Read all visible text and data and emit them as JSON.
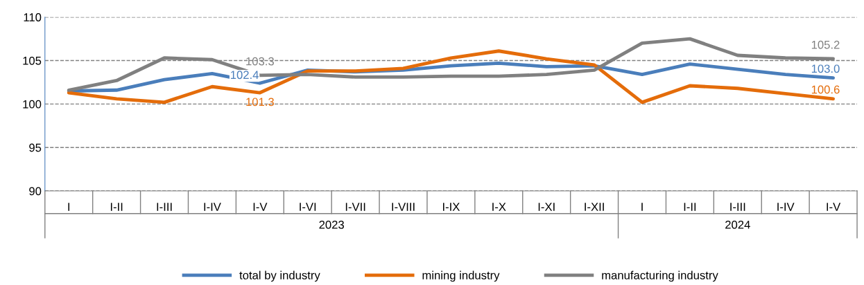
{
  "chart_data": {
    "type": "line",
    "categories": [
      "I",
      "I-II",
      "I-III",
      "I-IV",
      "I-V",
      "I-VI",
      "I-VII",
      "I-VIII",
      "I-IX",
      "I-X",
      "I-XI",
      "I-XII",
      "I",
      "I-II",
      "I-III",
      "I-IV",
      "I-V"
    ],
    "annotations": [
      "2023",
      "2024"
    ],
    "series": [
      {
        "name": "total by industry",
        "color": "#4a7ebb",
        "values": [
          101.5,
          101.6,
          102.8,
          103.5,
          102.4,
          103.9,
          103.7,
          103.9,
          104.4,
          104.7,
          104.3,
          104.4,
          103.4,
          104.6,
          104.0,
          103.4,
          103.0
        ],
        "value_labels": [
          null,
          null,
          null,
          null,
          "102.4",
          null,
          null,
          null,
          null,
          null,
          null,
          null,
          null,
          null,
          null,
          null,
          "103.0"
        ]
      },
      {
        "name": "mining industry",
        "color": "#e46c0a",
        "values": [
          101.3,
          100.6,
          100.2,
          102.0,
          101.3,
          103.8,
          103.8,
          104.1,
          105.3,
          106.1,
          105.2,
          104.5,
          100.2,
          102.1,
          101.8,
          101.2,
          100.6
        ],
        "value_labels": [
          null,
          null,
          null,
          null,
          "101.3",
          null,
          null,
          null,
          null,
          null,
          null,
          null,
          null,
          null,
          null,
          null,
          "100.6"
        ]
      },
      {
        "name": "manufacturing industry",
        "color": "#808080",
        "values": [
          101.6,
          102.7,
          105.3,
          105.1,
          103.3,
          103.4,
          103.1,
          103.1,
          103.2,
          103.2,
          103.4,
          103.9,
          107.0,
          107.5,
          105.6,
          105.3,
          105.2
        ],
        "value_labels": [
          null,
          null,
          null,
          null,
          "103.3",
          null,
          null,
          null,
          null,
          null,
          null,
          null,
          null,
          null,
          null,
          null,
          "105.2"
        ]
      }
    ],
    "ylim": [
      90,
      110
    ],
    "yticks": [
      90,
      95,
      100,
      105,
      110
    ],
    "grid": "y",
    "legend": "bottom",
    "line_style": "solid",
    "marker": "none"
  }
}
